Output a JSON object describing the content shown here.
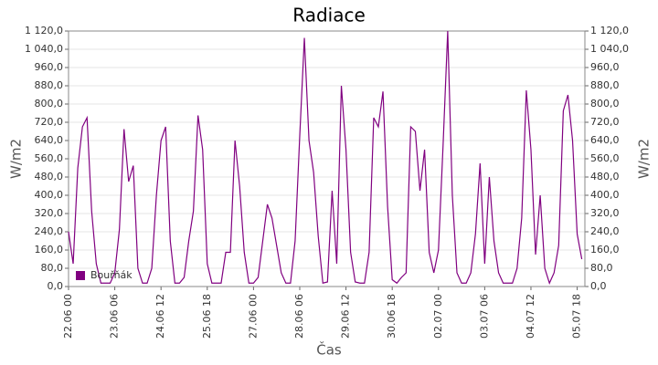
{
  "chart_data": {
    "type": "line",
    "title": "Radiace",
    "xlabel": "Čas",
    "ylabel": "W/m2",
    "y2label": "W/m2",
    "x": [
      0,
      3,
      6,
      9,
      12,
      15,
      18,
      21,
      24,
      27,
      30,
      33,
      36,
      39,
      42,
      45,
      48,
      51,
      54,
      57,
      60,
      63,
      66,
      69,
      72,
      75,
      78,
      81,
      84,
      87,
      90,
      93,
      96,
      99,
      102,
      105,
      108,
      111,
      114,
      117,
      120,
      123,
      126,
      129,
      132,
      135,
      138,
      141,
      144,
      147,
      150,
      153,
      156,
      159,
      162,
      165,
      168,
      171,
      174,
      177,
      180,
      183,
      186,
      189,
      192,
      195,
      198,
      201,
      204,
      207,
      210,
      213,
      216,
      219,
      222,
      225,
      228,
      231,
      234,
      237,
      240,
      243,
      246,
      249,
      252,
      255,
      258,
      261,
      264,
      267,
      270,
      273,
      276,
      279,
      282,
      285,
      288,
      291,
      294,
      297,
      300,
      303,
      306,
      309,
      312,
      315,
      318,
      321,
      324,
      327,
      330,
      333
    ],
    "series": [
      {
        "name": "Bouřňák",
        "color": "#800080",
        "values": [
          240,
          100,
          520,
          700,
          740,
          330,
          100,
          15,
          15,
          15,
          60,
          250,
          690,
          460,
          530,
          80,
          15,
          15,
          80,
          400,
          640,
          700,
          200,
          15,
          15,
          40,
          200,
          330,
          750,
          600,
          100,
          15,
          15,
          15,
          150,
          150,
          640,
          440,
          150,
          15,
          15,
          40,
          200,
          360,
          300,
          180,
          60,
          15,
          15,
          200,
          660,
          1090,
          640,
          500,
          220,
          15,
          20,
          420,
          100,
          880,
          600,
          150,
          20,
          15,
          15,
          150,
          740,
          700,
          855,
          350,
          30,
          15,
          40,
          60,
          700,
          680,
          420,
          600,
          150,
          60,
          160,
          620,
          1120,
          400,
          60,
          15,
          15,
          60,
          230,
          540,
          100,
          480,
          200,
          60,
          15,
          15,
          15,
          80,
          300,
          860,
          600,
          140,
          400,
          80,
          15,
          60,
          180,
          770,
          840,
          640,
          230,
          120
        ]
      }
    ],
    "xlim": [
      0,
      335
    ],
    "xticks": [
      {
        "value": 0,
        "label": "22.06 00"
      },
      {
        "value": 30,
        "label": "23.06 06"
      },
      {
        "value": 60,
        "label": "24.06 12"
      },
      {
        "value": 90,
        "label": "25.06 18"
      },
      {
        "value": 120,
        "label": "27.06 00"
      },
      {
        "value": 150,
        "label": "28.06 06"
      },
      {
        "value": 180,
        "label": "29.06 12"
      },
      {
        "value": 210,
        "label": "30.06 18"
      },
      {
        "value": 240,
        "label": "02.07 00"
      },
      {
        "value": 270,
        "label": "03.07 06"
      },
      {
        "value": 300,
        "label": "04.07 12"
      },
      {
        "value": 330,
        "label": "05.07 18"
      }
    ],
    "ylim": [
      0,
      1120
    ],
    "yticks": [
      {
        "value": 0,
        "label": "0,0"
      },
      {
        "value": 80,
        "label": "80,0"
      },
      {
        "value": 160,
        "label": "160,0"
      },
      {
        "value": 240,
        "label": "240,0"
      },
      {
        "value": 320,
        "label": "320,0"
      },
      {
        "value": 400,
        "label": "400,0"
      },
      {
        "value": 480,
        "label": "480,0"
      },
      {
        "value": 560,
        "label": "560,0"
      },
      {
        "value": 640,
        "label": "640,0"
      },
      {
        "value": 720,
        "label": "720,0"
      },
      {
        "value": 800,
        "label": "800,0"
      },
      {
        "value": 880,
        "label": "880,0"
      },
      {
        "value": 960,
        "label": "960,0"
      },
      {
        "value": 1040,
        "label": "1 040,0"
      },
      {
        "value": 1120,
        "label": "1 120,0"
      }
    ],
    "y2lim": [
      0,
      1120
    ],
    "y2ticks": [
      {
        "value": 0,
        "label": "0,0"
      },
      {
        "value": 80,
        "label": "80,0"
      },
      {
        "value": 160,
        "label": "160,0"
      },
      {
        "value": 240,
        "label": "240,0"
      },
      {
        "value": 320,
        "label": "320,0"
      },
      {
        "value": 400,
        "label": "400,0"
      },
      {
        "value": 480,
        "label": "480,0"
      },
      {
        "value": 560,
        "label": "560,0"
      },
      {
        "value": 640,
        "label": "640,0"
      },
      {
        "value": 720,
        "label": "720,0"
      },
      {
        "value": 800,
        "label": "800,0"
      },
      {
        "value": 880,
        "label": "880,0"
      },
      {
        "value": 960,
        "label": "960,0"
      },
      {
        "value": 1040,
        "label": "1 040,0"
      },
      {
        "value": 1120,
        "label": "1 120,0"
      }
    ],
    "grid": true,
    "legend": "lower left"
  }
}
